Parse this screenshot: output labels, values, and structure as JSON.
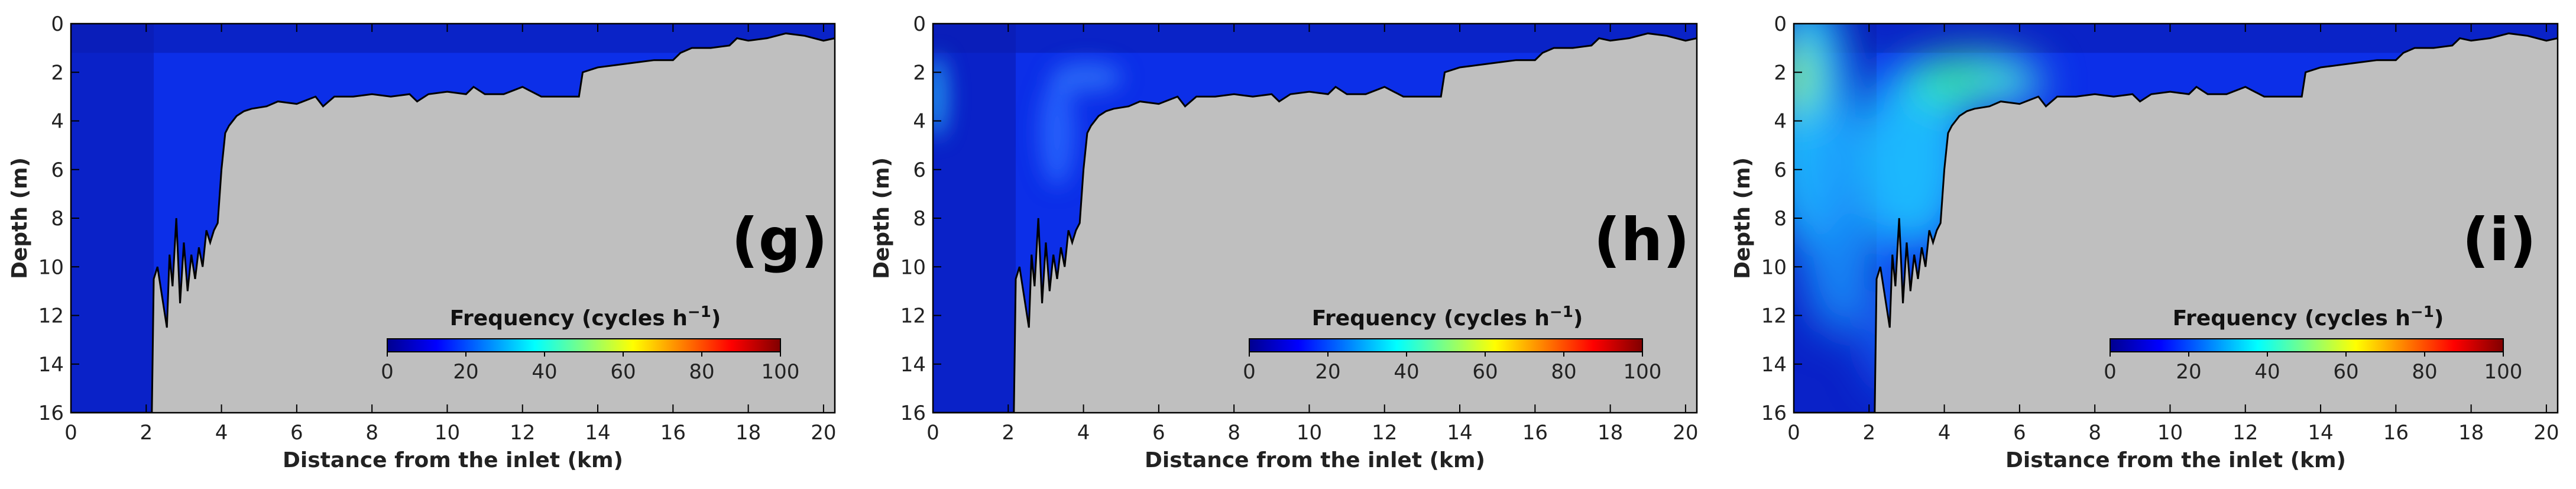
{
  "chart_data": [
    {
      "type": "contour",
      "panel_label": "(g)",
      "xlabel": "Distance from the inlet (km)",
      "ylabel": "Depth (m)",
      "xlim": [
        0,
        20.3
      ],
      "ylim": [
        16,
        0
      ],
      "x_ticks": [
        "0",
        "2",
        "4",
        "6",
        "8",
        "10",
        "12",
        "14",
        "16",
        "18",
        "20"
      ],
      "y_ticks": [
        "0",
        "2",
        "4",
        "6",
        "8",
        "10",
        "12",
        "14",
        "16"
      ],
      "colorbar": {
        "title": "Frequency (cycles h",
        "title_superscript": "−1",
        "title_end": ")",
        "ticks": [
          "0",
          "20",
          "40",
          "60",
          "80",
          "100"
        ],
        "range": [
          0,
          100
        ]
      },
      "intensity": 0
    },
    {
      "type": "contour",
      "panel_label": "(h)",
      "xlabel": "Distance from the inlet (km)",
      "ylabel": "Depth (m)",
      "xlim": [
        0,
        20.3
      ],
      "ylim": [
        16,
        0
      ],
      "x_ticks": [
        "0",
        "2",
        "4",
        "6",
        "8",
        "10",
        "12",
        "14",
        "16",
        "18",
        "20"
      ],
      "y_ticks": [
        "0",
        "2",
        "4",
        "6",
        "8",
        "10",
        "12",
        "14",
        "16"
      ],
      "colorbar": {
        "title": "Frequency (cycles h",
        "title_superscript": "−1",
        "title_end": ")",
        "ticks": [
          "0",
          "20",
          "40",
          "60",
          "80",
          "100"
        ],
        "range": [
          0,
          100
        ]
      },
      "intensity": 1
    },
    {
      "type": "contour",
      "panel_label": "(i)",
      "xlabel": "Distance from the inlet (km)",
      "ylabel": "Depth (m)",
      "xlim": [
        0,
        20.3
      ],
      "ylim": [
        16,
        0
      ],
      "x_ticks": [
        "0",
        "2",
        "4",
        "6",
        "8",
        "10",
        "12",
        "14",
        "16",
        "18",
        "20"
      ],
      "y_ticks": [
        "0",
        "2",
        "4",
        "6",
        "8",
        "10",
        "12",
        "14",
        "16"
      ],
      "colorbar": {
        "title": "Frequency (cycles h",
        "title_superscript": "−1",
        "title_end": ")",
        "ticks": [
          "0",
          "20",
          "40",
          "60",
          "80",
          "100"
        ],
        "range": [
          0,
          100
        ]
      },
      "intensity": 2
    }
  ],
  "bathymetry": {
    "description_units": "distance km vs bottom depth m",
    "x": [
      0,
      2.15,
      2.2,
      2.3,
      2.45,
      2.55,
      2.62,
      2.7,
      2.8,
      2.9,
      3.0,
      3.1,
      3.2,
      3.3,
      3.4,
      3.5,
      3.6,
      3.7,
      3.8,
      3.9,
      4.0,
      4.1,
      4.2,
      4.4,
      4.6,
      4.8,
      5.2,
      5.5,
      6.0,
      6.5,
      6.7,
      7.0,
      7.5,
      8.0,
      8.5,
      9.0,
      9.2,
      9.5,
      10.0,
      10.5,
      10.7,
      11.0,
      11.5,
      12.0,
      12.5,
      13.0,
      13.5,
      13.6,
      14.0,
      14.5,
      15.0,
      15.5,
      16.0,
      16.2,
      16.5,
      17.0,
      17.5,
      17.7,
      18.0,
      18.5,
      19.0,
      19.5,
      20.0,
      20.3
    ],
    "depth": [
      16,
      16,
      10.5,
      10.0,
      11.5,
      12.5,
      9.5,
      10.8,
      8.0,
      11.5,
      9.0,
      11.0,
      9.5,
      10.5,
      9.2,
      10.0,
      8.5,
      9.0,
      8.5,
      8.2,
      6.0,
      4.5,
      4.2,
      3.8,
      3.6,
      3.5,
      3.4,
      3.2,
      3.3,
      3.0,
      3.4,
      3.0,
      3.0,
      2.9,
      3.0,
      2.9,
      3.2,
      2.9,
      2.8,
      2.9,
      2.6,
      2.9,
      2.9,
      2.6,
      3.0,
      3.0,
      3.0,
      2.0,
      1.8,
      1.7,
      1.6,
      1.5,
      1.5,
      1.2,
      1.0,
      1.0,
      0.9,
      0.6,
      0.7,
      0.6,
      0.4,
      0.5,
      0.7,
      0.6
    ]
  }
}
